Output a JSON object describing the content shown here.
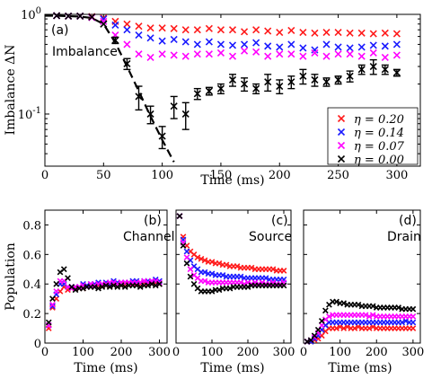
{
  "chart_data": [
    {
      "type": "scatter",
      "panel": "a",
      "panel_label": "(a)",
      "annotation": "Imbalance",
      "xlabel": "Time (ms)",
      "ylabel": "Imbalance ΔN",
      "yscale": "log",
      "xlim": [
        0,
        320
      ],
      "ylim": [
        0.03,
        1
      ],
      "xticks": [
        "0",
        "50",
        "100",
        "150",
        "200",
        "250",
        "300"
      ],
      "yticks": [
        "10^-1",
        "10^0"
      ],
      "legend_position": "bottom-right",
      "x": [
        10,
        20,
        30,
        40,
        50,
        60,
        70,
        80,
        90,
        100,
        110,
        120,
        130,
        140,
        150,
        160,
        170,
        180,
        190,
        200,
        210,
        220,
        230,
        240,
        250,
        260,
        270,
        280,
        290,
        300
      ],
      "series": [
        {
          "name": "η = 0.20",
          "color": "#ff1a1a",
          "values": [
            0.97,
            0.96,
            0.96,
            0.95,
            0.92,
            0.85,
            0.8,
            0.76,
            0.73,
            0.73,
            0.72,
            0.7,
            0.7,
            0.72,
            0.7,
            0.7,
            0.67,
            0.7,
            0.68,
            0.66,
            0.69,
            0.66,
            0.65,
            0.66,
            0.66,
            0.65,
            0.65,
            0.64,
            0.65,
            0.64
          ]
        },
        {
          "name": "η = 0.14",
          "color": "#1a1aff",
          "values": [
            0.97,
            0.96,
            0.96,
            0.94,
            0.9,
            0.78,
            0.7,
            0.62,
            0.58,
            0.54,
            0.56,
            0.53,
            0.5,
            0.53,
            0.5,
            0.49,
            0.5,
            0.52,
            0.48,
            0.47,
            0.5,
            0.46,
            0.44,
            0.5,
            0.47,
            0.46,
            0.47,
            0.49,
            0.48,
            0.5
          ]
        },
        {
          "name": "η = 0.07",
          "color": "#ff00ff",
          "values": [
            0.97,
            0.96,
            0.96,
            0.93,
            0.85,
            0.62,
            0.5,
            0.4,
            0.37,
            0.4,
            0.39,
            0.38,
            0.4,
            0.4,
            0.41,
            0.38,
            0.43,
            0.42,
            0.38,
            0.4,
            0.4,
            0.38,
            0.41,
            0.38,
            0.4,
            0.4,
            0.38,
            0.41,
            0.37,
            0.39
          ]
        },
        {
          "name": "η = 0.00",
          "color": "#000000",
          "values": [
            0.97,
            0.96,
            0.96,
            0.94,
            0.8,
            0.55,
            0.32,
            0.15,
            0.1,
            0.06,
            0.12,
            0.1,
            0.16,
            0.17,
            0.18,
            0.22,
            0.2,
            0.18,
            0.21,
            0.19,
            0.21,
            0.24,
            0.22,
            0.21,
            0.22,
            0.24,
            0.28,
            0.3,
            0.28,
            0.26
          ]
        }
      ],
      "error_bars_eta0": [
        0,
        0,
        0,
        0,
        0,
        0.04,
        0.04,
        0.04,
        0.02,
        0.015,
        0.03,
        0.03,
        0.02,
        0.015,
        0.02,
        0.03,
        0.03,
        0.02,
        0.04,
        0.03,
        0.03,
        0.04,
        0.03,
        0.02,
        0.02,
        0.03,
        0.03,
        0.05,
        0.03,
        0.02
      ],
      "fit_curve_x": [
        0,
        10,
        20,
        30,
        40,
        50,
        60,
        70,
        80,
        90,
        100,
        110
      ],
      "fit_curve_y": [
        0.97,
        0.97,
        0.96,
        0.95,
        0.92,
        0.8,
        0.52,
        0.3,
        0.17,
        0.095,
        0.055,
        0.033
      ]
    },
    {
      "type": "scatter",
      "panel": "b",
      "panel_label": "(b)",
      "title": "Channel",
      "xlabel": "Time (ms)",
      "ylabel": "Population",
      "xlim": [
        0,
        320
      ],
      "ylim": [
        0,
        0.9
      ],
      "xticks": [
        "0",
        "100",
        "200",
        "300"
      ],
      "yticks": [
        "0",
        "0.2",
        "0.4",
        "0.6",
        "0.8"
      ],
      "x": [
        10,
        20,
        30,
        40,
        50,
        60,
        70,
        80,
        90,
        100,
        110,
        120,
        130,
        140,
        150,
        160,
        170,
        180,
        190,
        200,
        210,
        220,
        230,
        240,
        250,
        260,
        270,
        280,
        290,
        300
      ],
      "series": [
        {
          "color": "#ff1a1a",
          "values": [
            0.1,
            0.24,
            0.3,
            0.35,
            0.38,
            0.36,
            0.37,
            0.37,
            0.38,
            0.37,
            0.39,
            0.38,
            0.39,
            0.39,
            0.39,
            0.4,
            0.39,
            0.4,
            0.4,
            0.39,
            0.4,
            0.41,
            0.4,
            0.4,
            0.4,
            0.41,
            0.4,
            0.41,
            0.41,
            0.4
          ]
        },
        {
          "color": "#1a1aff",
          "values": [
            0.12,
            0.25,
            0.33,
            0.4,
            0.4,
            0.38,
            0.38,
            0.38,
            0.38,
            0.4,
            0.39,
            0.4,
            0.4,
            0.41,
            0.4,
            0.41,
            0.4,
            0.42,
            0.41,
            0.41,
            0.41,
            0.41,
            0.42,
            0.42,
            0.41,
            0.42,
            0.42,
            0.42,
            0.43,
            0.42
          ]
        },
        {
          "color": "#ff00ff",
          "values": [
            0.12,
            0.26,
            0.35,
            0.42,
            0.42,
            0.38,
            0.37,
            0.38,
            0.38,
            0.39,
            0.38,
            0.4,
            0.39,
            0.4,
            0.4,
            0.4,
            0.41,
            0.41,
            0.4,
            0.41,
            0.41,
            0.41,
            0.41,
            0.41,
            0.41,
            0.42,
            0.41,
            0.42,
            0.42,
            0.41
          ]
        },
        {
          "color": "#000000",
          "values": [
            0.14,
            0.3,
            0.4,
            0.48,
            0.5,
            0.44,
            0.38,
            0.36,
            0.37,
            0.37,
            0.38,
            0.38,
            0.38,
            0.37,
            0.38,
            0.39,
            0.38,
            0.39,
            0.38,
            0.39,
            0.38,
            0.39,
            0.39,
            0.39,
            0.38,
            0.39,
            0.39,
            0.4,
            0.39,
            0.4
          ]
        }
      ]
    },
    {
      "type": "scatter",
      "panel": "c",
      "panel_label": "(c)",
      "title": "Source",
      "xlabel": "Time (ms)",
      "xlim": [
        0,
        320
      ],
      "ylim": [
        0,
        0.9
      ],
      "xticks": [
        "0",
        "100",
        "200",
        "300"
      ],
      "x": [
        10,
        20,
        30,
        40,
        50,
        60,
        70,
        80,
        90,
        100,
        110,
        120,
        130,
        140,
        150,
        160,
        170,
        180,
        190,
        200,
        210,
        220,
        230,
        240,
        250,
        260,
        270,
        280,
        290,
        300
      ],
      "series": [
        {
          "color": "#ff1a1a",
          "values": [
            0.86,
            0.72,
            0.66,
            0.62,
            0.6,
            0.58,
            0.57,
            0.56,
            0.55,
            0.55,
            0.54,
            0.54,
            0.53,
            0.53,
            0.52,
            0.52,
            0.52,
            0.51,
            0.51,
            0.51,
            0.51,
            0.5,
            0.5,
            0.5,
            0.5,
            0.5,
            0.5,
            0.49,
            0.49,
            0.49
          ]
        },
        {
          "color": "#1a1aff",
          "values": [
            0.86,
            0.7,
            0.62,
            0.56,
            0.52,
            0.5,
            0.48,
            0.48,
            0.47,
            0.47,
            0.46,
            0.46,
            0.46,
            0.45,
            0.45,
            0.45,
            0.45,
            0.45,
            0.44,
            0.44,
            0.44,
            0.44,
            0.44,
            0.44,
            0.44,
            0.43,
            0.43,
            0.43,
            0.43,
            0.43
          ]
        },
        {
          "color": "#ff00ff",
          "values": [
            0.86,
            0.68,
            0.58,
            0.5,
            0.46,
            0.44,
            0.42,
            0.42,
            0.41,
            0.41,
            0.41,
            0.41,
            0.41,
            0.41,
            0.41,
            0.41,
            0.41,
            0.41,
            0.4,
            0.41,
            0.4,
            0.41,
            0.4,
            0.41,
            0.4,
            0.4,
            0.41,
            0.4,
            0.4,
            0.41
          ]
        },
        {
          "color": "#000000",
          "values": [
            0.86,
            0.66,
            0.54,
            0.45,
            0.4,
            0.37,
            0.35,
            0.35,
            0.35,
            0.35,
            0.36,
            0.36,
            0.37,
            0.37,
            0.37,
            0.38,
            0.38,
            0.38,
            0.38,
            0.38,
            0.39,
            0.39,
            0.39,
            0.39,
            0.39,
            0.39,
            0.39,
            0.39,
            0.39,
            0.39
          ]
        }
      ]
    },
    {
      "type": "scatter",
      "panel": "d",
      "panel_label": "(d)",
      "title": "Drain",
      "xlabel": "Time (ms)",
      "xlim": [
        0,
        320
      ],
      "ylim": [
        0,
        0.9
      ],
      "xticks": [
        "0",
        "100",
        "200",
        "300"
      ],
      "x": [
        10,
        20,
        30,
        40,
        50,
        60,
        70,
        80,
        90,
        100,
        110,
        120,
        130,
        140,
        150,
        160,
        170,
        180,
        190,
        200,
        210,
        220,
        230,
        240,
        250,
        260,
        270,
        280,
        290,
        300
      ],
      "series": [
        {
          "color": "#ff1a1a",
          "values": [
            0.01,
            0.01,
            0.02,
            0.03,
            0.05,
            0.08,
            0.1,
            0.1,
            0.1,
            0.11,
            0.1,
            0.11,
            0.1,
            0.1,
            0.11,
            0.1,
            0.1,
            0.1,
            0.11,
            0.1,
            0.1,
            0.1,
            0.1,
            0.1,
            0.1,
            0.1,
            0.1,
            0.1,
            0.1,
            0.1
          ]
        },
        {
          "color": "#1a1aff",
          "values": [
            0.01,
            0.01,
            0.03,
            0.05,
            0.09,
            0.12,
            0.14,
            0.14,
            0.14,
            0.14,
            0.14,
            0.14,
            0.14,
            0.14,
            0.14,
            0.14,
            0.14,
            0.14,
            0.14,
            0.14,
            0.14,
            0.14,
            0.14,
            0.14,
            0.14,
            0.14,
            0.14,
            0.15,
            0.14,
            0.14
          ]
        },
        {
          "color": "#ff00ff",
          "values": [
            0.01,
            0.02,
            0.04,
            0.07,
            0.12,
            0.16,
            0.18,
            0.19,
            0.19,
            0.19,
            0.19,
            0.19,
            0.19,
            0.19,
            0.19,
            0.19,
            0.19,
            0.18,
            0.19,
            0.18,
            0.18,
            0.18,
            0.18,
            0.18,
            0.18,
            0.18,
            0.18,
            0.18,
            0.18,
            0.18
          ]
        },
        {
          "color": "#000000",
          "values": [
            0.01,
            0.02,
            0.05,
            0.09,
            0.15,
            0.22,
            0.26,
            0.28,
            0.28,
            0.27,
            0.27,
            0.26,
            0.26,
            0.26,
            0.26,
            0.25,
            0.25,
            0.25,
            0.25,
            0.24,
            0.24,
            0.24,
            0.24,
            0.24,
            0.24,
            0.24,
            0.23,
            0.23,
            0.23,
            0.23
          ]
        }
      ]
    }
  ]
}
